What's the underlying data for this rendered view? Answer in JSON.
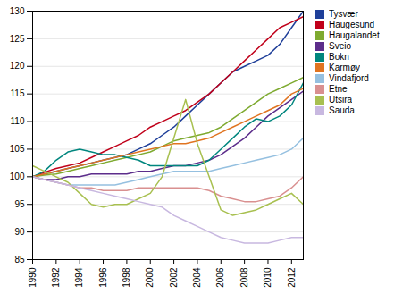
{
  "chart_data": {
    "type": "line",
    "x": [
      1990,
      1991,
      1992,
      1993,
      1994,
      1995,
      1996,
      1997,
      1998,
      1999,
      2000,
      2001,
      2002,
      2003,
      2004,
      2005,
      2006,
      2007,
      2008,
      2009,
      2010,
      2011,
      2012,
      2013
    ],
    "series": [
      {
        "name": "Tysvær",
        "color": "#1F3F99",
        "values": [
          100,
          100.5,
          101,
          101.5,
          102,
          102.5,
          103,
          103.5,
          104,
          105,
          106,
          107.5,
          109,
          111,
          113,
          115,
          117,
          119,
          120,
          121,
          122,
          124,
          127,
          130
        ]
      },
      {
        "name": "Haugesund",
        "color": "#C0001A",
        "values": [
          100,
          100.8,
          101.5,
          102,
          102.5,
          103.5,
          104.5,
          105.5,
          106.5,
          107.5,
          109,
          110,
          111,
          112,
          113.5,
          115,
          117,
          119,
          121,
          123,
          125,
          127,
          128,
          129
        ]
      },
      {
        "name": "Haugalandet",
        "color": "#7EAA30",
        "values": [
          100,
          100.3,
          100.5,
          101,
          101.5,
          102,
          102.5,
          103,
          103.5,
          104,
          104.5,
          105.5,
          106.5,
          107,
          107.5,
          108,
          109,
          110.5,
          112,
          113.5,
          115,
          116,
          117,
          118
        ]
      },
      {
        "name": "Sveio",
        "color": "#5C2D8B",
        "values": [
          100,
          99.5,
          99.5,
          100,
          100,
          100.5,
          100.5,
          100.5,
          100.5,
          101,
          101,
          101.5,
          102,
          102,
          102.5,
          103,
          104,
          105.5,
          107,
          109,
          111,
          112.5,
          114,
          115.5
        ]
      },
      {
        "name": "Bokn",
        "color": "#00867E",
        "values": [
          100,
          101,
          103,
          104.5,
          105,
          104.5,
          104,
          104,
          103.5,
          103,
          102,
          102,
          102,
          102,
          102,
          103,
          105,
          107,
          109,
          110.5,
          110,
          111,
          113,
          117
        ]
      },
      {
        "name": "Karmøy",
        "color": "#E07420",
        "values": [
          100,
          100.5,
          101,
          101.5,
          102,
          102.5,
          103,
          103.5,
          104,
          104.5,
          105,
          105.5,
          106,
          106,
          106.5,
          107,
          108,
          109,
          110,
          111,
          112,
          113,
          115,
          116
        ]
      },
      {
        "name": "Vindafjord",
        "color": "#95C0E0",
        "values": [
          100,
          99.5,
          99,
          98.5,
          98.5,
          98.5,
          98.5,
          98.5,
          99,
          99.5,
          100,
          100.5,
          101,
          101,
          101,
          101,
          101.5,
          102,
          102.5,
          103,
          103.5,
          104,
          105,
          107
        ]
      },
      {
        "name": "Etne",
        "color": "#D99090",
        "values": [
          100,
          99.5,
          99,
          98.5,
          98,
          98,
          97.5,
          97.5,
          97.5,
          98,
          98,
          98,
          98,
          98,
          98,
          97.5,
          96.5,
          96,
          95.5,
          95.5,
          96,
          96.5,
          98,
          100
        ]
      },
      {
        "name": "Utsira",
        "color": "#A8C050",
        "values": [
          102,
          101,
          100,
          99,
          97,
          95,
          94.5,
          95,
          95,
          96,
          97,
          100,
          107,
          114,
          106,
          100,
          94,
          93,
          93.5,
          94,
          95,
          96,
          97,
          95
        ]
      },
      {
        "name": "Sauda",
        "color": "#C8B8E0",
        "values": [
          100,
          99.5,
          99,
          98.5,
          98,
          97.5,
          97,
          96.5,
          96,
          95.5,
          95,
          94.5,
          93,
          92,
          91,
          90,
          89,
          88.5,
          88,
          88,
          88,
          88.5,
          89,
          89
        ]
      }
    ],
    "xlim": [
      1990,
      2013
    ],
    "xticks": [
      1990,
      1992,
      1994,
      1996,
      1998,
      2000,
      2002,
      2004,
      2006,
      2008,
      2010,
      2012
    ],
    "ylim": [
      85,
      130
    ],
    "yticks": [
      85,
      90,
      95,
      100,
      105,
      110,
      115,
      120,
      125,
      130
    ],
    "grid": "y",
    "legend": "right"
  }
}
